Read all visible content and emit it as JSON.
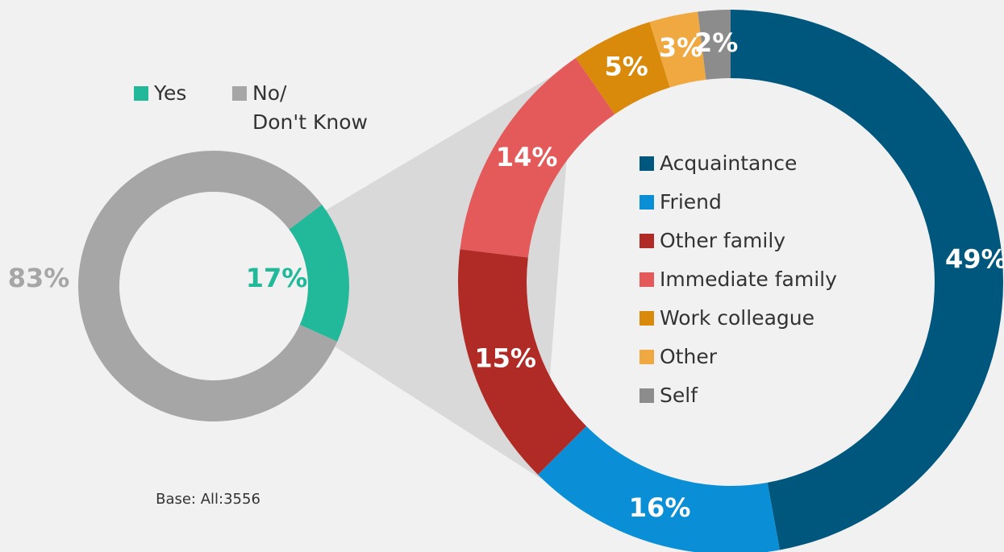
{
  "chart_data": [
    {
      "type": "donut",
      "categories": [
        "Yes",
        "No/\nDon't Know"
      ],
      "values": [
        17,
        83
      ],
      "value_labels": [
        "17%",
        "83%"
      ],
      "colors": [
        "#22b89a",
        "#a6a6a6"
      ],
      "annotation": "Base: All:3556"
    },
    {
      "type": "donut",
      "categories": [
        "Acquaintance",
        "Friend",
        "Other family",
        "Immediate family",
        "Work colleague",
        "Other",
        "Self"
      ],
      "values": [
        49,
        16,
        15,
        14,
        5,
        3,
        2
      ],
      "value_labels": [
        "49%",
        "16%",
        "15%",
        "14%",
        "5%",
        "3%",
        "2%"
      ],
      "colors": [
        "#00577d",
        "#0a8fd6",
        "#b02a26",
        "#e45a5a",
        "#d98a0a",
        "#f0a840",
        "#8c8c8c"
      ]
    }
  ]
}
